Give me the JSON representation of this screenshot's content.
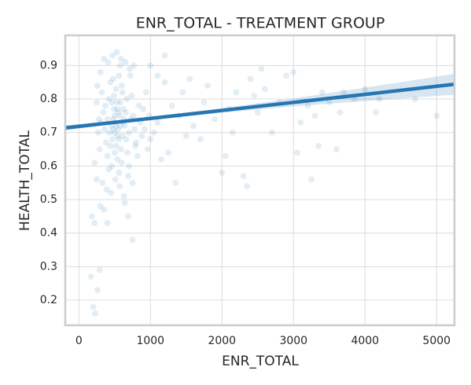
{
  "chart_data": {
    "type": "scatter",
    "title": "ENR_TOTAL - TREATMENT GROUP",
    "x_label": "ENR_TOTAL",
    "y_label": "HEALTH_TOTAL",
    "color": "#1f77b4",
    "grid": true,
    "xlim": [
      -190,
      5250
    ],
    "ylim": [
      0.125,
      0.99
    ],
    "xticks": [
      0,
      1000,
      2000,
      3000,
      4000,
      5000
    ],
    "yticks": [
      0.2,
      0.3,
      0.4,
      0.5,
      0.6,
      0.7,
      0.8,
      0.9
    ],
    "x": [
      180,
      220,
      200,
      230,
      260,
      290,
      170,
      400,
      750,
      690,
      640,
      300,
      350,
      250,
      220,
      1100,
      1200,
      1300,
      1400,
      1500,
      1600,
      1700,
      1800,
      1900,
      2000,
      2050,
      2100,
      2200,
      2300,
      2350,
      2400,
      2500,
      2600,
      2700,
      2800,
      2900,
      3000,
      3050,
      3100,
      3200,
      3250,
      3300,
      3350,
      3400,
      3500,
      3600,
      3650,
      3700,
      3850,
      4000,
      4150,
      4200,
      4700,
      5000,
      1050,
      1150,
      1250,
      1350,
      1450,
      1550,
      1750,
      2150,
      2450,
      2550,
      1000,
      1000,
      1100,
      1200,
      300,
      320,
      340,
      360,
      380,
      400,
      420,
      440,
      460,
      480,
      500,
      520,
      540,
      560,
      580,
      600,
      620,
      640,
      660,
      680,
      700,
      720,
      740,
      760,
      780,
      800,
      820,
      840,
      860,
      880,
      350,
      410,
      470,
      530,
      590,
      650,
      710,
      770,
      330,
      390,
      450,
      510,
      570,
      630,
      690,
      750,
      310,
      370,
      430,
      490,
      550,
      610,
      670,
      730,
      790,
      450,
      470,
      490,
      510,
      530,
      550,
      570,
      590,
      610,
      630,
      420,
      440,
      460,
      480,
      500,
      520,
      540,
      560,
      580,
      600,
      250,
      270,
      290,
      260,
      280,
      900,
      920,
      940,
      960,
      980,
      400,
      520,
      560,
      620,
      480,
      540,
      500,
      580,
      660,
      700
    ],
    "values": [
      0.45,
      0.43,
      0.18,
      0.16,
      0.23,
      0.29,
      0.27,
      0.43,
      0.38,
      0.45,
      0.49,
      0.48,
      0.47,
      0.56,
      0.61,
      0.87,
      0.85,
      0.78,
      0.75,
      0.69,
      0.72,
      0.68,
      0.84,
      0.74,
      0.58,
      0.63,
      0.77,
      0.82,
      0.57,
      0.54,
      0.86,
      0.76,
      0.83,
      0.7,
      0.79,
      0.87,
      0.88,
      0.64,
      0.73,
      0.78,
      0.56,
      0.75,
      0.66,
      0.82,
      0.79,
      0.65,
      0.76,
      0.82,
      0.8,
      0.83,
      0.76,
      0.8,
      0.8,
      0.75,
      0.7,
      0.62,
      0.64,
      0.55,
      0.82,
      0.86,
      0.79,
      0.7,
      0.81,
      0.89,
      0.9,
      0.68,
      0.73,
      0.93,
      0.88,
      0.82,
      0.76,
      0.71,
      0.67,
      0.63,
      0.59,
      0.85,
      0.79,
      0.74,
      0.7,
      0.66,
      0.62,
      0.58,
      0.9,
      0.84,
      0.77,
      0.72,
      0.68,
      0.64,
      0.6,
      0.87,
      0.81,
      0.75,
      0.71,
      0.67,
      0.63,
      0.78,
      0.73,
      0.69,
      0.92,
      0.91,
      0.93,
      0.94,
      0.92,
      0.91,
      0.89,
      0.9,
      0.55,
      0.53,
      0.52,
      0.56,
      0.54,
      0.51,
      0.57,
      0.55,
      0.73,
      0.78,
      0.7,
      0.81,
      0.76,
      0.69,
      0.8,
      0.74,
      0.66,
      0.72,
      0.68,
      0.77,
      0.73,
      0.79,
      0.71,
      0.75,
      0.65,
      0.82,
      0.74,
      0.8,
      0.66,
      0.6,
      0.86,
      0.75,
      0.83,
      0.69,
      0.87,
      0.72,
      0.61,
      0.79,
      0.7,
      0.65,
      0.84,
      0.74,
      0.77,
      0.71,
      0.82,
      0.65,
      0.75,
      0.74,
      0.72,
      0.68,
      0.73,
      0.71,
      0.77,
      0.64,
      0.79,
      0.76,
      0.7
    ],
    "fit": {
      "color": "#2676b2",
      "x": [
        -190,
        500,
        1000,
        2000,
        3000,
        4000,
        5250
      ],
      "values": [
        0.714,
        0.7305,
        0.742,
        0.766,
        0.79,
        0.814,
        0.844
      ],
      "ci_low": [
        0.706,
        0.7265,
        0.738,
        0.759,
        0.778,
        0.794,
        0.813
      ],
      "ci_high": [
        0.722,
        0.7345,
        0.746,
        0.773,
        0.802,
        0.834,
        0.875
      ]
    }
  }
}
